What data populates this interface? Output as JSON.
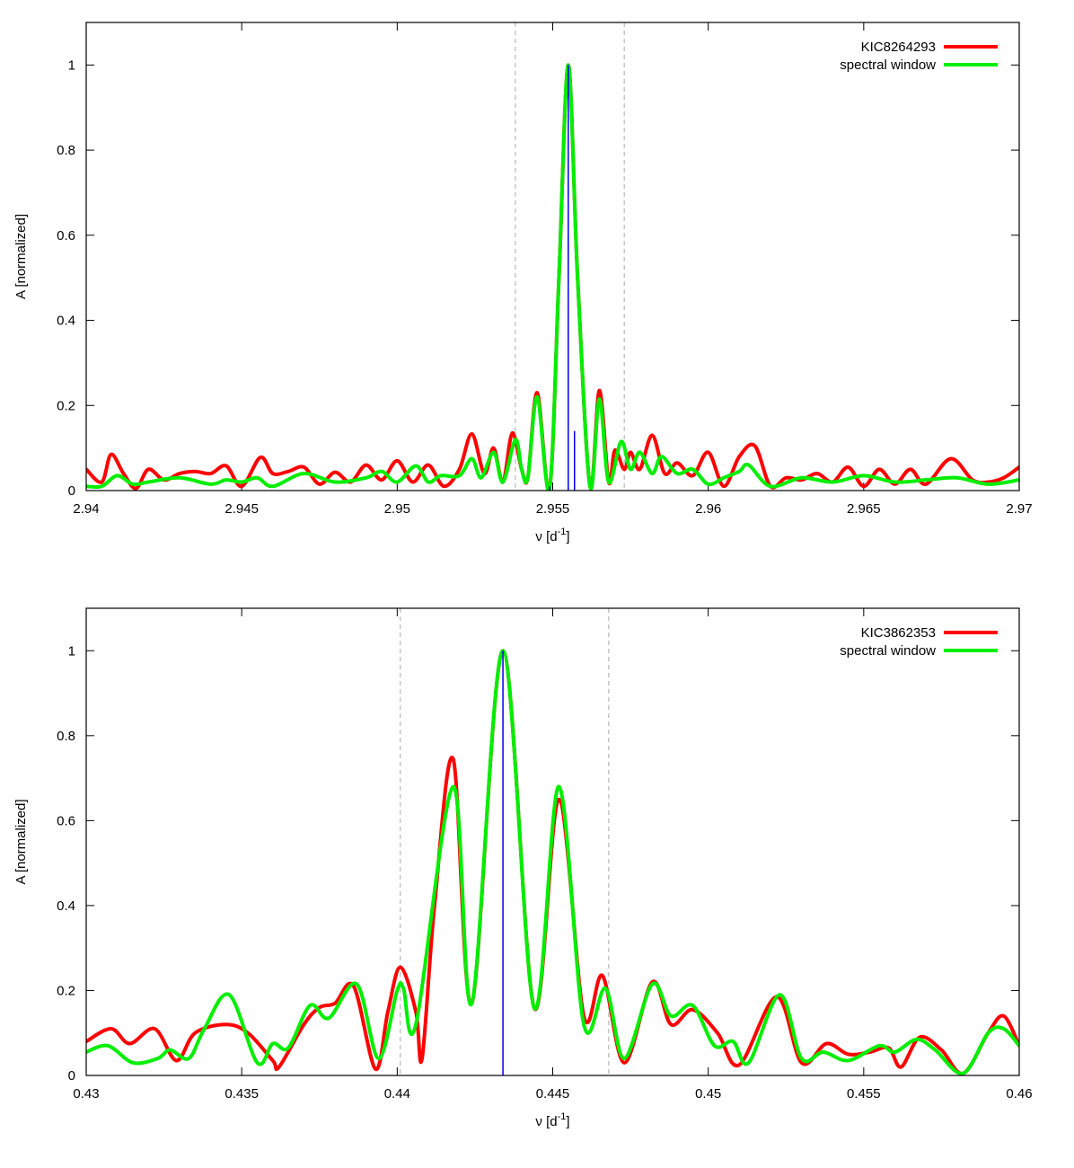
{
  "chart_data": [
    {
      "type": "line",
      "xlabel_main": "ν [d",
      "xlabel_sup": "-1",
      "xlabel_close": "]",
      "ylabel": "A [normalized]",
      "xlim": [
        2.94,
        2.97
      ],
      "ylim": [
        0,
        1.1
      ],
      "xticks": [
        2.94,
        2.945,
        2.95,
        2.955,
        2.96,
        2.965,
        2.97
      ],
      "xtick_labels": [
        "2.94",
        "2.945",
        "2.95",
        "2.955",
        "2.96",
        "2.965",
        "2.97"
      ],
      "yticks": [
        0,
        0.2,
        0.4,
        0.6,
        0.8,
        1
      ],
      "ytick_labels": [
        "0",
        "0.2",
        "0.4",
        "0.6",
        "0.8",
        "1"
      ],
      "legend_position": "top-right",
      "dashed_lines_x": [
        2.9538,
        2.9573
      ],
      "vertical_marks": [
        {
          "x": 2.9555,
          "y": 1.0
        },
        {
          "x": 2.9557,
          "y": 0.14
        },
        {
          "x": 2.9549,
          "y": 0.01
        }
      ],
      "series": [
        {
          "name": "KIC8264293",
          "color": "#ff0000",
          "points": [
            [
              2.94,
              0.05
            ],
            [
              2.9405,
              0.02
            ],
            [
              2.9408,
              0.085
            ],
            [
              2.9412,
              0.04
            ],
            [
              2.9416,
              0.005
            ],
            [
              2.942,
              0.05
            ],
            [
              2.9425,
              0.025
            ],
            [
              2.943,
              0.04
            ],
            [
              2.9435,
              0.045
            ],
            [
              2.944,
              0.04
            ],
            [
              2.9445,
              0.058
            ],
            [
              2.945,
              0.01
            ],
            [
              2.9456,
              0.078
            ],
            [
              2.946,
              0.04
            ],
            [
              2.9465,
              0.045
            ],
            [
              2.947,
              0.055
            ],
            [
              2.9475,
              0.015
            ],
            [
              2.948,
              0.043
            ],
            [
              2.9485,
              0.02
            ],
            [
              2.949,
              0.06
            ],
            [
              2.9495,
              0.025
            ],
            [
              2.95,
              0.07
            ],
            [
              2.9505,
              0.02
            ],
            [
              2.951,
              0.06
            ],
            [
              2.9515,
              0.01
            ],
            [
              2.952,
              0.05
            ],
            [
              2.9524,
              0.133
            ],
            [
              2.9528,
              0.04
            ],
            [
              2.9531,
              0.1
            ],
            [
              2.9534,
              0.02
            ],
            [
              2.9537,
              0.135
            ],
            [
              2.954,
              0.05
            ],
            [
              2.9542,
              0.03
            ],
            [
              2.9545,
              0.23
            ],
            [
              2.9549,
              0.005
            ],
            [
              2.9552,
              0.5
            ],
            [
              2.9555,
              1.0
            ],
            [
              2.9558,
              0.5
            ],
            [
              2.9562,
              0.01
            ],
            [
              2.9565,
              0.235
            ],
            [
              2.9568,
              0.02
            ],
            [
              2.957,
              0.095
            ],
            [
              2.9573,
              0.05
            ],
            [
              2.9575,
              0.09
            ],
            [
              2.9578,
              0.05
            ],
            [
              2.9582,
              0.13
            ],
            [
              2.9586,
              0.04
            ],
            [
              2.959,
              0.065
            ],
            [
              2.9595,
              0.035
            ],
            [
              2.96,
              0.09
            ],
            [
              2.9605,
              0.01
            ],
            [
              2.961,
              0.08
            ],
            [
              2.9615,
              0.105
            ],
            [
              2.962,
              0.01
            ],
            [
              2.9625,
              0.03
            ],
            [
              2.963,
              0.025
            ],
            [
              2.9635,
              0.04
            ],
            [
              2.964,
              0.02
            ],
            [
              2.9645,
              0.055
            ],
            [
              2.965,
              0.01
            ],
            [
              2.9655,
              0.05
            ],
            [
              2.966,
              0.015
            ],
            [
              2.9665,
              0.05
            ],
            [
              2.967,
              0.015
            ],
            [
              2.9678,
              0.075
            ],
            [
              2.9685,
              0.025
            ],
            [
              2.969,
              0.02
            ],
            [
              2.9695,
              0.03
            ],
            [
              2.97,
              0.055
            ]
          ]
        },
        {
          "name": "spectral window",
          "color": "#00ee00",
          "points": [
            [
              2.94,
              0.01
            ],
            [
              2.9405,
              0.01
            ],
            [
              2.941,
              0.035
            ],
            [
              2.9415,
              0.015
            ],
            [
              2.942,
              0.02
            ],
            [
              2.943,
              0.03
            ],
            [
              2.944,
              0.015
            ],
            [
              2.9445,
              0.025
            ],
            [
              2.945,
              0.02
            ],
            [
              2.9455,
              0.03
            ],
            [
              2.946,
              0.01
            ],
            [
              2.947,
              0.04
            ],
            [
              2.948,
              0.02
            ],
            [
              2.949,
              0.03
            ],
            [
              2.9495,
              0.045
            ],
            [
              2.95,
              0.02
            ],
            [
              2.9506,
              0.058
            ],
            [
              2.951,
              0.02
            ],
            [
              2.9514,
              0.035
            ],
            [
              2.952,
              0.035
            ],
            [
              2.9524,
              0.075
            ],
            [
              2.9527,
              0.03
            ],
            [
              2.9531,
              0.09
            ],
            [
              2.9534,
              0.02
            ],
            [
              2.9538,
              0.12
            ],
            [
              2.954,
              0.05
            ],
            [
              2.9542,
              0.03
            ],
            [
              2.9545,
              0.22
            ],
            [
              2.9549,
              0.005
            ],
            [
              2.9552,
              0.5
            ],
            [
              2.9555,
              1.0
            ],
            [
              2.9558,
              0.5
            ],
            [
              2.9562,
              0.01
            ],
            [
              2.9565,
              0.215
            ],
            [
              2.9568,
              0.02
            ],
            [
              2.9572,
              0.115
            ],
            [
              2.9575,
              0.05
            ],
            [
              2.9578,
              0.09
            ],
            [
              2.9582,
              0.04
            ],
            [
              2.9585,
              0.08
            ],
            [
              2.959,
              0.04
            ],
            [
              2.9595,
              0.05
            ],
            [
              2.96,
              0.015
            ],
            [
              2.9605,
              0.03
            ],
            [
              2.961,
              0.045
            ],
            [
              2.9613,
              0.06
            ],
            [
              2.962,
              0.01
            ],
            [
              2.963,
              0.03
            ],
            [
              2.964,
              0.02
            ],
            [
              2.965,
              0.035
            ],
            [
              2.966,
              0.02
            ],
            [
              2.967,
              0.025
            ],
            [
              2.968,
              0.03
            ],
            [
              2.969,
              0.015
            ],
            [
              2.97,
              0.025
            ]
          ]
        }
      ]
    },
    {
      "type": "line",
      "xlabel_main": "ν [d",
      "xlabel_sup": "-1",
      "xlabel_close": "]",
      "ylabel": "A [normalized]",
      "xlim": [
        0.43,
        0.46
      ],
      "ylim": [
        0,
        1.1
      ],
      "xticks": [
        0.43,
        0.435,
        0.44,
        0.445,
        0.45,
        0.455,
        0.46
      ],
      "xtick_labels": [
        "0.43",
        "0.435",
        "0.44",
        "0.445",
        "0.45",
        "0.455",
        "0.46"
      ],
      "yticks": [
        0,
        0.2,
        0.4,
        0.6,
        0.8,
        1
      ],
      "ytick_labels": [
        "0",
        "0.2",
        "0.4",
        "0.6",
        "0.8",
        "1"
      ],
      "legend_position": "top-right",
      "dashed_lines_x": [
        0.4401,
        0.4468
      ],
      "vertical_marks": [
        {
          "x": 0.4434,
          "y": 1.0
        }
      ],
      "series": [
        {
          "name": "KIC3862353",
          "color": "#ff0000",
          "points": [
            [
              0.43,
              0.08
            ],
            [
              0.4308,
              0.11
            ],
            [
              0.4314,
              0.075
            ],
            [
              0.4322,
              0.11
            ],
            [
              0.4329,
              0.035
            ],
            [
              0.4335,
              0.1
            ],
            [
              0.4345,
              0.12
            ],
            [
              0.4352,
              0.1
            ],
            [
              0.436,
              0.035
            ],
            [
              0.4362,
              0.02
            ],
            [
              0.437,
              0.12
            ],
            [
              0.4375,
              0.16
            ],
            [
              0.438,
              0.17
            ],
            [
              0.4386,
              0.21
            ],
            [
              0.4393,
              0.015
            ],
            [
              0.4397,
              0.15
            ],
            [
              0.4401,
              0.255
            ],
            [
              0.4406,
              0.15
            ],
            [
              0.4408,
              0.04
            ],
            [
              0.4412,
              0.4
            ],
            [
              0.4418,
              0.745
            ],
            [
              0.4424,
              0.17
            ],
            [
              0.4434,
              1.0
            ],
            [
              0.4444,
              0.16
            ],
            [
              0.4452,
              0.65
            ],
            [
              0.446,
              0.14
            ],
            [
              0.4466,
              0.235
            ],
            [
              0.4473,
              0.03
            ],
            [
              0.4482,
              0.22
            ],
            [
              0.4488,
              0.12
            ],
            [
              0.4495,
              0.155
            ],
            [
              0.4503,
              0.1
            ],
            [
              0.451,
              0.025
            ],
            [
              0.4522,
              0.185
            ],
            [
              0.453,
              0.03
            ],
            [
              0.4538,
              0.075
            ],
            [
              0.4545,
              0.05
            ],
            [
              0.4552,
              0.055
            ],
            [
              0.4558,
              0.065
            ],
            [
              0.4562,
              0.02
            ],
            [
              0.4568,
              0.09
            ],
            [
              0.4575,
              0.06
            ],
            [
              0.4582,
              0.005
            ],
            [
              0.459,
              0.1
            ],
            [
              0.4595,
              0.14
            ],
            [
              0.46,
              0.07
            ]
          ]
        },
        {
          "name": "spectral window",
          "color": "#00ee00",
          "points": [
            [
              0.43,
              0.055
            ],
            [
              0.4307,
              0.07
            ],
            [
              0.4315,
              0.03
            ],
            [
              0.4323,
              0.04
            ],
            [
              0.4327,
              0.06
            ],
            [
              0.4333,
              0.04
            ],
            [
              0.4338,
              0.11
            ],
            [
              0.4346,
              0.19
            ],
            [
              0.4355,
              0.03
            ],
            [
              0.436,
              0.075
            ],
            [
              0.4365,
              0.065
            ],
            [
              0.4372,
              0.165
            ],
            [
              0.4378,
              0.135
            ],
            [
              0.4387,
              0.215
            ],
            [
              0.4394,
              0.04
            ],
            [
              0.44,
              0.2
            ],
            [
              0.4402,
              0.205
            ],
            [
              0.4406,
              0.12
            ],
            [
              0.4418,
              0.68
            ],
            [
              0.4424,
              0.17
            ],
            [
              0.4434,
              1.0
            ],
            [
              0.4444,
              0.16
            ],
            [
              0.4452,
              0.68
            ],
            [
              0.446,
              0.12
            ],
            [
              0.4467,
              0.205
            ],
            [
              0.4473,
              0.04
            ],
            [
              0.4482,
              0.215
            ],
            [
              0.4488,
              0.14
            ],
            [
              0.4495,
              0.165
            ],
            [
              0.4502,
              0.07
            ],
            [
              0.4508,
              0.08
            ],
            [
              0.4513,
              0.03
            ],
            [
              0.4523,
              0.19
            ],
            [
              0.453,
              0.04
            ],
            [
              0.4537,
              0.055
            ],
            [
              0.4545,
              0.035
            ],
            [
              0.4555,
              0.07
            ],
            [
              0.456,
              0.055
            ],
            [
              0.4567,
              0.085
            ],
            [
              0.4573,
              0.06
            ],
            [
              0.4582,
              0.005
            ],
            [
              0.459,
              0.1
            ],
            [
              0.4595,
              0.11
            ],
            [
              0.46,
              0.07
            ]
          ]
        }
      ]
    }
  ]
}
